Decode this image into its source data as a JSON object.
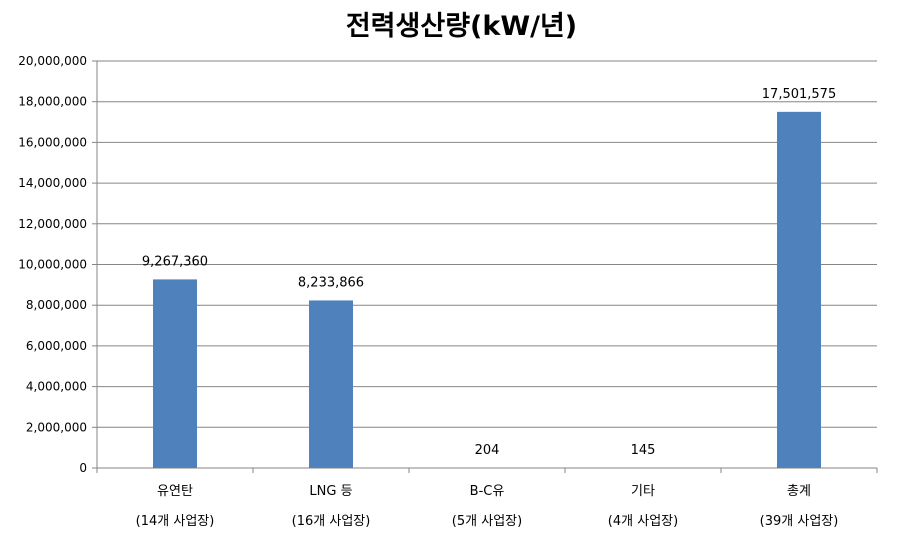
{
  "chart_data": {
    "type": "bar",
    "title": "전력생산량(kW/년)",
    "categories": [
      {
        "line1": "유연탄",
        "line2": "(14개 사업장)"
      },
      {
        "line1": "LNG 등",
        "line2": "(16개 사업장)"
      },
      {
        "line1": "B-C유",
        "line2": "(5개 사업장)"
      },
      {
        "line1": "기타",
        "line2": "(4개 사업장)"
      },
      {
        "line1": "총계",
        "line2": "(39개 사업장)"
      }
    ],
    "values": [
      9267360,
      8233866,
      204,
      145,
      17501575
    ],
    "data_labels": [
      "9,267,360",
      "8,233,866",
      "204",
      "145",
      "17,501,575"
    ],
    "y_ticks": [
      "0",
      "2,000,000",
      "4,000,000",
      "6,000,000",
      "8,000,000",
      "10,000,000",
      "12,000,000",
      "14,000,000",
      "16,000,000",
      "18,000,000",
      "20,000,000"
    ],
    "ylim": [
      0,
      20000000
    ],
    "grid": true,
    "legend": "none",
    "bar_color": "#4f81bd",
    "grid_color": "#868686",
    "axis_color": "#868686"
  }
}
